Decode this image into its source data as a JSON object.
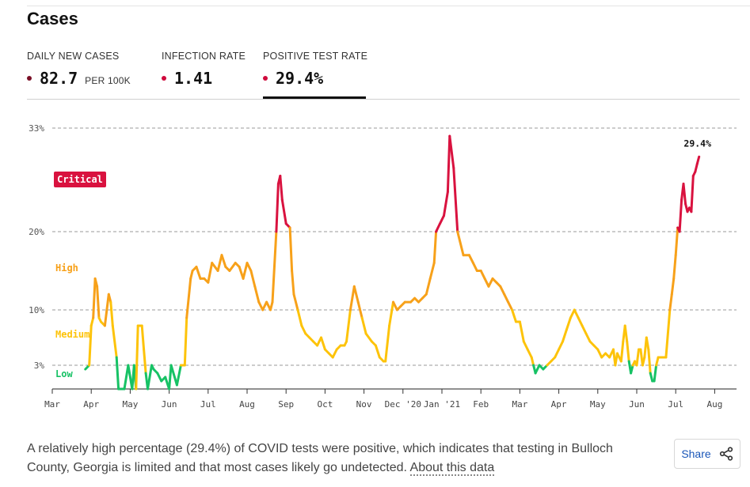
{
  "title": "Cases",
  "metrics": [
    {
      "label": "DAILY NEW CASES",
      "value": "82.7",
      "unit": "PER 100K",
      "color": "#7a0f26"
    },
    {
      "label": "INFECTION RATE",
      "value": "1.41",
      "color": "#cf0a3c"
    },
    {
      "label": "POSITIVE TEST RATE",
      "value": "29.4%",
      "color": "#cf0a3c",
      "active": true
    }
  ],
  "description": {
    "text": "A relatively high percentage (29.4%) of COVID tests were positive, which indicates that testing in Bulloch County, Georgia is limited and that most cases likely go undetected. ",
    "link": "About this data"
  },
  "share": {
    "label": "Share",
    "icon": "share-icon"
  },
  "chart_data": {
    "type": "line",
    "y_tick_labels": [
      "3%",
      "10%",
      "20%",
      "33%"
    ],
    "y_ticks": [
      3,
      10,
      20,
      33
    ],
    "ylim": [
      0,
      33
    ],
    "x_tick_labels": [
      "Mar",
      "Apr",
      "May",
      "Jun",
      "Jul",
      "Aug",
      "Sep",
      "Oct",
      "Nov",
      "Dec '20",
      "Jan '21",
      "Feb",
      "Mar",
      "Apr",
      "May",
      "Jun",
      "Jul",
      "Aug"
    ],
    "zones": [
      {
        "label": "Low",
        "color": "#17c265",
        "min": 0,
        "max": 3
      },
      {
        "label": "Medium",
        "color": "#fdc30a",
        "min": 3,
        "max": 10
      },
      {
        "label": "High",
        "color": "#f7a11a",
        "min": 10,
        "max": 20
      },
      {
        "label": "Critical",
        "color": "#d9123f",
        "min": 20,
        "max": 33
      }
    ],
    "end_label": "29.4%",
    "x_unit": "months since Mar 2020",
    "series": [
      {
        "values": [
          [
            0.85,
            2.5
          ],
          [
            0.95,
            3
          ],
          [
            1.0,
            8
          ],
          [
            1.05,
            9
          ],
          [
            1.1,
            14
          ],
          [
            1.15,
            13
          ],
          [
            1.2,
            9
          ],
          [
            1.25,
            8.5
          ],
          [
            1.35,
            8
          ],
          [
            1.45,
            12
          ],
          [
            1.5,
            11
          ],
          [
            1.55,
            8
          ],
          [
            1.65,
            4
          ],
          [
            1.7,
            0
          ],
          [
            1.85,
            0
          ],
          [
            1.95,
            3
          ],
          [
            2.05,
            0
          ],
          [
            2.1,
            3
          ],
          [
            2.15,
            0
          ],
          [
            2.2,
            8
          ],
          [
            2.3,
            8
          ],
          [
            2.35,
            5
          ],
          [
            2.4,
            2
          ],
          [
            2.45,
            0
          ],
          [
            2.55,
            3
          ],
          [
            2.6,
            2.5
          ],
          [
            2.7,
            2
          ],
          [
            2.8,
            1
          ],
          [
            2.9,
            1.5
          ],
          [
            3.0,
            0
          ],
          [
            3.05,
            3
          ],
          [
            3.2,
            0.5
          ],
          [
            3.3,
            3
          ],
          [
            3.4,
            3
          ],
          [
            3.45,
            9
          ],
          [
            3.55,
            14
          ],
          [
            3.6,
            15
          ],
          [
            3.7,
            15.5
          ],
          [
            3.8,
            14
          ],
          [
            3.9,
            14
          ],
          [
            4.0,
            13.5
          ],
          [
            4.1,
            16
          ],
          [
            4.25,
            15
          ],
          [
            4.35,
            17
          ],
          [
            4.45,
            15.5
          ],
          [
            4.55,
            15
          ],
          [
            4.7,
            16
          ],
          [
            4.8,
            15.5
          ],
          [
            4.9,
            14
          ],
          [
            5.0,
            16
          ],
          [
            5.1,
            15
          ],
          [
            5.2,
            13
          ],
          [
            5.3,
            11
          ],
          [
            5.4,
            10
          ],
          [
            5.5,
            11
          ],
          [
            5.6,
            10
          ],
          [
            5.65,
            11
          ],
          [
            5.75,
            20
          ],
          [
            5.8,
            26
          ],
          [
            5.85,
            27
          ],
          [
            5.9,
            24
          ],
          [
            6.0,
            21
          ],
          [
            6.1,
            20.5
          ],
          [
            6.15,
            15
          ],
          [
            6.2,
            12
          ],
          [
            6.3,
            10
          ],
          [
            6.4,
            8
          ],
          [
            6.5,
            7
          ],
          [
            6.6,
            6.5
          ],
          [
            6.7,
            6
          ],
          [
            6.8,
            5.5
          ],
          [
            6.9,
            6.5
          ],
          [
            7.0,
            5
          ],
          [
            7.1,
            4.5
          ],
          [
            7.2,
            4
          ],
          [
            7.3,
            5
          ],
          [
            7.4,
            5.5
          ],
          [
            7.5,
            5.5
          ],
          [
            7.55,
            6
          ],
          [
            7.65,
            10
          ],
          [
            7.75,
            13
          ],
          [
            7.85,
            11
          ],
          [
            7.95,
            9
          ],
          [
            8.05,
            7
          ],
          [
            8.2,
            6
          ],
          [
            8.3,
            5.5
          ],
          [
            8.4,
            4
          ],
          [
            8.5,
            3.5
          ],
          [
            8.55,
            3.5
          ],
          [
            8.65,
            8
          ],
          [
            8.75,
            11
          ],
          [
            8.85,
            10
          ],
          [
            8.95,
            10.5
          ],
          [
            9.05,
            11
          ],
          [
            9.2,
            11
          ],
          [
            9.3,
            11.5
          ],
          [
            9.4,
            11
          ],
          [
            9.5,
            11.5
          ],
          [
            9.6,
            12
          ],
          [
            9.7,
            14
          ],
          [
            9.8,
            16
          ],
          [
            9.85,
            20
          ],
          [
            9.95,
            21
          ],
          [
            10.05,
            22
          ],
          [
            10.15,
            25
          ],
          [
            10.2,
            32
          ],
          [
            10.3,
            28
          ],
          [
            10.4,
            20
          ],
          [
            10.55,
            17
          ],
          [
            10.7,
            17
          ],
          [
            10.8,
            16
          ],
          [
            10.9,
            15
          ],
          [
            11.0,
            15
          ],
          [
            11.1,
            14
          ],
          [
            11.2,
            13
          ],
          [
            11.3,
            14
          ],
          [
            11.4,
            13.5
          ],
          [
            11.5,
            13
          ],
          [
            11.6,
            12
          ],
          [
            11.7,
            11
          ],
          [
            11.8,
            10
          ],
          [
            11.9,
            8.5
          ],
          [
            12.0,
            8.5
          ],
          [
            12.1,
            6
          ],
          [
            12.2,
            5
          ],
          [
            12.3,
            4
          ],
          [
            12.35,
            3
          ],
          [
            12.4,
            2
          ],
          [
            12.5,
            3
          ],
          [
            12.6,
            2.5
          ],
          [
            12.7,
            3
          ],
          [
            12.8,
            3.5
          ],
          [
            12.9,
            4
          ],
          [
            13.0,
            5
          ],
          [
            13.1,
            6
          ],
          [
            13.2,
            7.5
          ],
          [
            13.3,
            9
          ],
          [
            13.4,
            10
          ],
          [
            13.5,
            9
          ],
          [
            13.6,
            8
          ],
          [
            13.7,
            7
          ],
          [
            13.8,
            6
          ],
          [
            13.9,
            5.5
          ],
          [
            14.0,
            5
          ],
          [
            14.1,
            4
          ],
          [
            14.2,
            4.5
          ],
          [
            14.3,
            4
          ],
          [
            14.4,
            5
          ],
          [
            14.45,
            3
          ],
          [
            14.5,
            4.5
          ],
          [
            14.6,
            3.5
          ],
          [
            14.65,
            6
          ],
          [
            14.7,
            8
          ],
          [
            14.75,
            6
          ],
          [
            14.8,
            3.5
          ],
          [
            14.85,
            2
          ],
          [
            14.9,
            3
          ],
          [
            14.95,
            3.5
          ],
          [
            15.0,
            3
          ],
          [
            15.05,
            5
          ],
          [
            15.1,
            5
          ],
          [
            15.15,
            3
          ],
          [
            15.2,
            4
          ],
          [
            15.25,
            6.5
          ],
          [
            15.3,
            5
          ],
          [
            15.35,
            2
          ],
          [
            15.4,
            1
          ],
          [
            15.45,
            1
          ],
          [
            15.5,
            3
          ],
          [
            15.55,
            4
          ],
          [
            15.65,
            4
          ],
          [
            15.75,
            4
          ],
          [
            15.85,
            10
          ],
          [
            15.9,
            12
          ],
          [
            15.95,
            14
          ],
          [
            16.0,
            17
          ],
          [
            16.05,
            20.5
          ],
          [
            16.1,
            20
          ],
          [
            16.15,
            24
          ],
          [
            16.2,
            26
          ],
          [
            16.25,
            23.5
          ],
          [
            16.3,
            22.5
          ],
          [
            16.35,
            23
          ],
          [
            16.4,
            22.5
          ],
          [
            16.45,
            27
          ],
          [
            16.5,
            27.5
          ],
          [
            16.55,
            28.5
          ],
          [
            16.6,
            29.4
          ]
        ]
      }
    ]
  }
}
